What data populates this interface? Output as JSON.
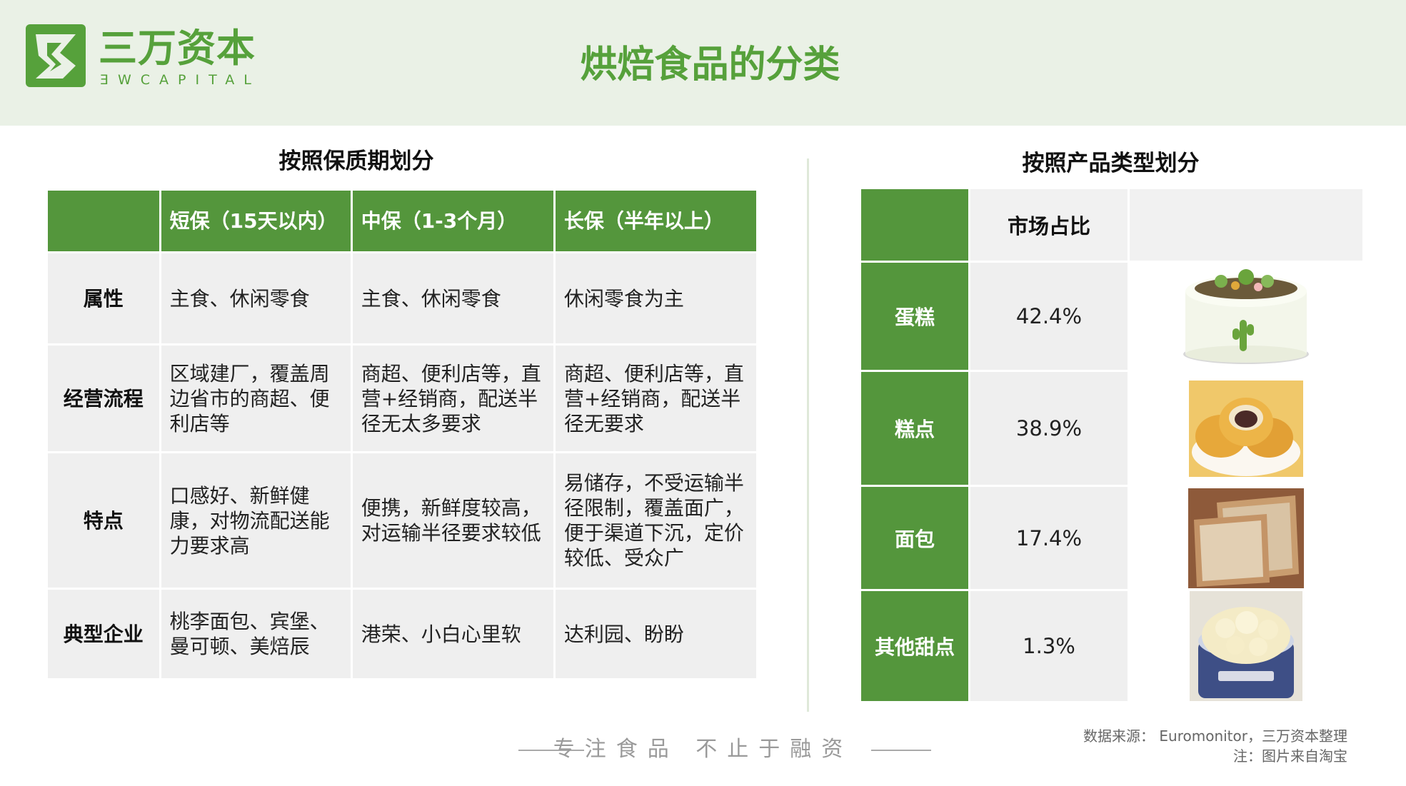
{
  "brand": {
    "cn": "三万资本",
    "en": "ƎWCAPITAL",
    "color": "#56a13b"
  },
  "title": "烘焙食品的分类",
  "left": {
    "title": "按照保质期划分",
    "headers": [
      "",
      "短保（15天以内）",
      "中保（1-3个月）",
      "长保（半年以上）"
    ],
    "rows": [
      {
        "label": "属性",
        "cells": [
          "主食、休闲零食",
          "主食、休闲零食",
          "休闲零食为主"
        ]
      },
      {
        "label": "经营流程",
        "cells": [
          "区域建厂，覆盖周边省市的商超、便利店等",
          "商超、便利店等，直营+经销商，配送半径无太多要求",
          "商超、便利店等，直营+经销商，配送半径无要求"
        ]
      },
      {
        "label": "特点",
        "cells": [
          "口感好、新鲜健康，对物流配送能力要求高",
          "便携，新鲜度较高，对运输半径要求较低",
          "易储存，不受运输半径限制，覆盖面广，便于渠道下沉，定价较低、受众广"
        ]
      },
      {
        "label": "典型企业",
        "cells": [
          "桃李面包、宾堡、曼可顿、美焙辰",
          "港荣、小白心里软",
          "达利园、盼盼"
        ]
      }
    ]
  },
  "right": {
    "title": "按照产品类型划分",
    "header": "市场占比",
    "rows": [
      {
        "label": "蛋糕",
        "value": "42.4%",
        "icon": "cake-image"
      },
      {
        "label": "糕点",
        "value": "38.9%",
        "icon": "pastry-image"
      },
      {
        "label": "面包",
        "value": "17.4%",
        "icon": "bread-image"
      },
      {
        "label": "其他甜点",
        "value": "1.3%",
        "icon": "cream-dessert-image"
      }
    ]
  },
  "footer": {
    "slogan": "专注食品 不止于融资",
    "source_line1": "数据来源： Euromonitor，三万资本整理",
    "source_line2": "注：图片来自淘宝"
  },
  "colors": {
    "accent": "#54963c",
    "header_bg": "#eaf1e6",
    "cell_bg": "#efefef"
  }
}
